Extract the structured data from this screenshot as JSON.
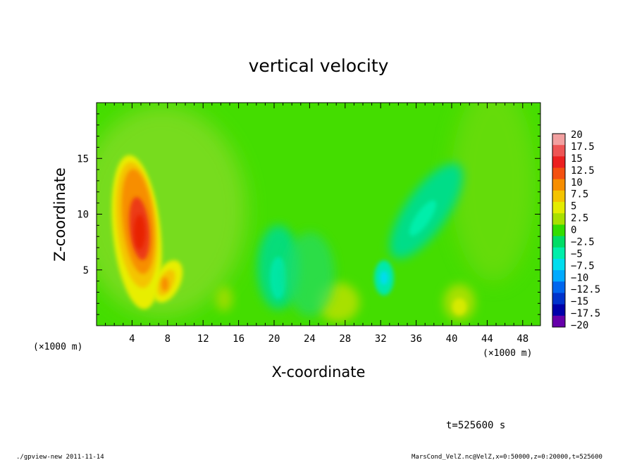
{
  "chart_data": {
    "type": "heatmap",
    "title": "vertical velocity",
    "xlabel": "X-coordinate",
    "ylabel": "Z-coordinate",
    "x_unit": "(×1000 m)",
    "y_unit": "(×1000 m)",
    "xlim": [
      0,
      50
    ],
    "ylim": [
      0,
      20
    ],
    "x_ticks": [
      4,
      8,
      12,
      16,
      20,
      24,
      28,
      32,
      36,
      40,
      44,
      48
    ],
    "y_ticks": [
      5,
      10,
      15
    ],
    "colorbar": {
      "levels": [
        20,
        17.5,
        15,
        12.5,
        10,
        7.5,
        5,
        2.5,
        0,
        -2.5,
        -5,
        -7.5,
        -10,
        -12.5,
        -15,
        -17.5,
        -20
      ],
      "labels": [
        "20",
        "17.5",
        "15",
        "12.5",
        "10",
        "7.5",
        "5",
        "2.5",
        "0",
        "−2.5",
        "−5",
        "−7.5",
        "−10",
        "−12.5",
        "−15",
        "−17.5",
        "−20"
      ],
      "colors": [
        "#f2a0a0",
        "#ee5555",
        "#ec2020",
        "#f45010",
        "#f78e00",
        "#f4c400",
        "#e4ec00",
        "#a8e000",
        "#33dd00",
        "#00dd66",
        "#00eeaa",
        "#00ddee",
        "#00aaff",
        "#0066ee",
        "#0033cc",
        "#0000aa",
        "#6600aa"
      ]
    },
    "features": [
      {
        "x": 4.5,
        "z": 8.0,
        "value": 15
      },
      {
        "x": 7.6,
        "z": 3.8,
        "value": 7
      },
      {
        "x": 27.3,
        "z": 2.0,
        "value": 4
      },
      {
        "x": 40.5,
        "z": 1.8,
        "value": 5
      },
      {
        "x": 14.5,
        "z": 2.5,
        "value": 2
      },
      {
        "x": 20.0,
        "z": 4.0,
        "value": -4
      },
      {
        "x": 32.3,
        "z": 4.3,
        "value": -4
      },
      {
        "x": 37.0,
        "z": 10.0,
        "value": -4
      },
      {
        "x": 48.5,
        "z": 9.0,
        "value": 1
      }
    ]
  },
  "annotations": {
    "time": "t=525600 s",
    "footer_left": "./gpview-new   2011-11-14",
    "footer_right": "MarsCond_VelZ.nc@VelZ,x=0:50000,z=0:20000,t=525600"
  }
}
